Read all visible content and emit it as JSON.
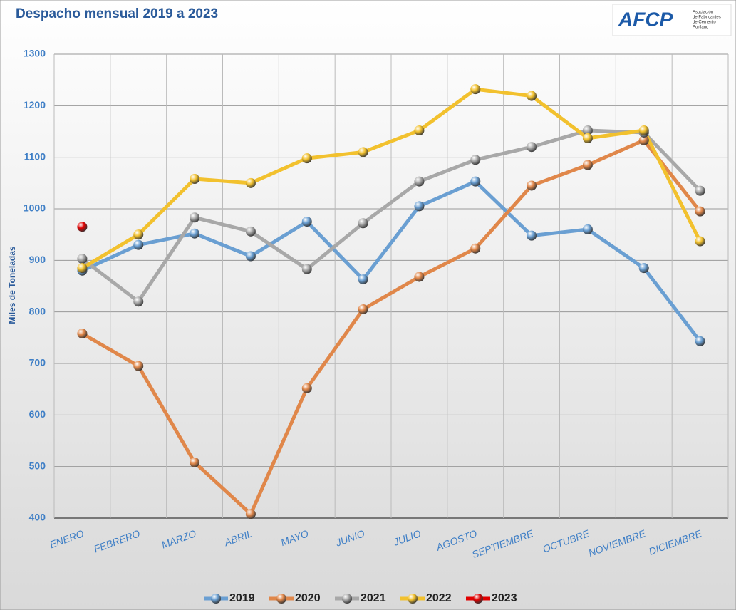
{
  "chart_data": {
    "type": "line",
    "title": "Despacho mensual 2019 a 2023",
    "logo": {
      "name": "AFCP",
      "lines": [
        "Asociación",
        "de Fabricantes",
        "de Cemento",
        "Portland"
      ]
    },
    "y_label": "Miles de Toneladas",
    "categories": [
      "ENERO",
      "FEBRERO",
      "MARZO",
      "ABRIL",
      "MAYO",
      "JUNIO",
      "JULIO",
      "AGOSTO",
      "SEPTIEMBRE",
      "OCTUBRE",
      "NOVIEMBRE",
      "DICIEMBRE"
    ],
    "series": [
      {
        "name": "2019",
        "color": "#6a9fd2",
        "values": [
          880,
          930,
          952,
          908,
          975,
          863,
          1005,
          1053,
          948,
          960,
          885,
          743
        ]
      },
      {
        "name": "2020",
        "color": "#e0874a",
        "values": [
          758,
          695,
          508,
          408,
          652,
          805,
          868,
          923,
          1045,
          1085,
          1133,
          995
        ]
      },
      {
        "name": "2021",
        "color": "#a8a8a8",
        "values": [
          903,
          820,
          983,
          956,
          883,
          972,
          1053,
          1095,
          1120,
          1152,
          1148,
          1035
        ]
      },
      {
        "name": "2022",
        "color": "#f2c12e",
        "values": [
          885,
          950,
          1058,
          1050,
          1098,
          1110,
          1152,
          1232,
          1219,
          1137,
          1152,
          937
        ]
      },
      {
        "name": "2023",
        "color": "#e00000",
        "values": [
          965,
          null,
          null,
          null,
          null,
          null,
          null,
          null,
          null,
          null,
          null,
          null
        ]
      }
    ],
    "ylim": [
      400,
      1300
    ],
    "yticks": [
      400,
      500,
      600,
      700,
      800,
      900,
      1000,
      1100,
      1200,
      1300
    ],
    "grid": true,
    "legend": "bottom"
  }
}
